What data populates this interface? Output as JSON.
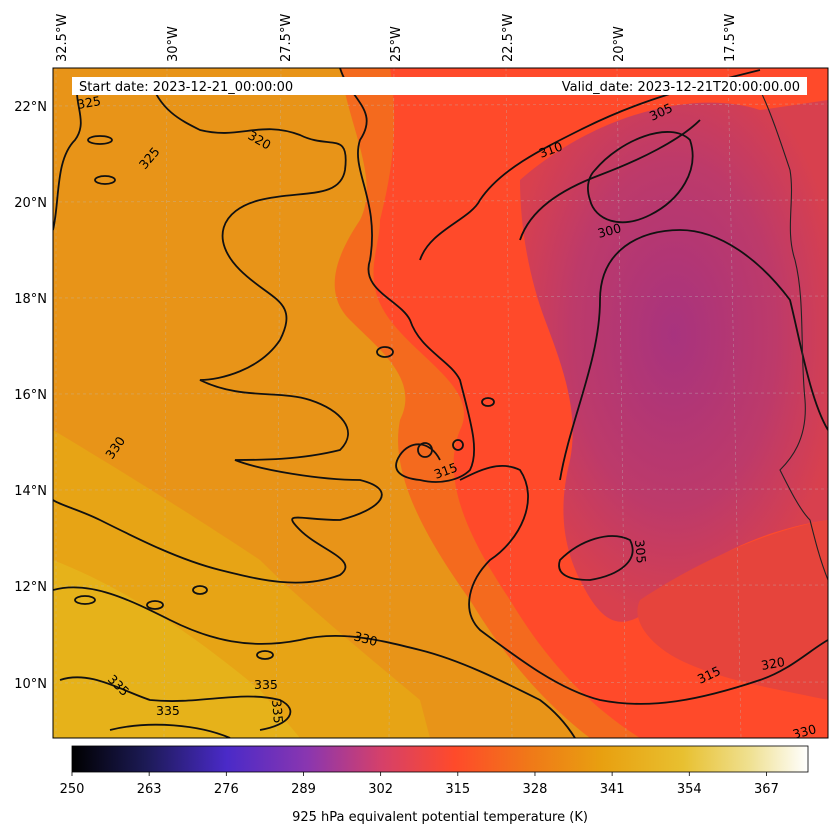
{
  "header": {
    "start_date": "Start date: 2023-12-21_00:00:00",
    "valid_date": "Valid_date: 2023-12-21T20:00:00.00"
  },
  "map": {
    "lon_labels": [
      "32.5°W",
      "30°W",
      "27.5°W",
      "25°W",
      "22.5°W",
      "20°W",
      "17.5°W"
    ],
    "lat_labels": [
      "22°N",
      "20°N",
      "18°N",
      "16°N",
      "14°N",
      "12°N",
      "10°N"
    ],
    "contour_labels": [
      "325",
      "320",
      "325",
      "305",
      "310",
      "300",
      "330",
      "315",
      "305",
      "330",
      "335",
      "335",
      "335",
      "335",
      "315",
      "320",
      "330"
    ],
    "colors": {
      "low": "#b03c7a",
      "mid": "#ff4a2a",
      "high": "#e8a010"
    }
  },
  "colorbar": {
    "label": "925 hPa equivalent potential temperature (K)",
    "ticks": [
      "250",
      "263",
      "276",
      "289",
      "302",
      "315",
      "328",
      "341",
      "354",
      "367"
    ],
    "range": [
      250,
      374
    ],
    "colormap": "CMRmap-like"
  }
}
